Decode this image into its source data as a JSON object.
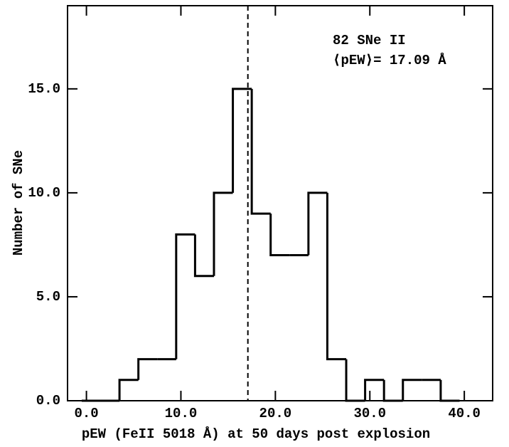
{
  "chart_data": {
    "type": "histogram",
    "xlabel": "pEW (FeII 5018 Å) at 50 days post explosion",
    "ylabel": "Number of SNe",
    "annotations": [
      "82 SNe II",
      "⟨pEW⟩= 17.09 Å"
    ],
    "mean_line": 17.09,
    "bins": [
      -0.5,
      1.5,
      3.5,
      5.5,
      7.5,
      9.5,
      11.5,
      13.5,
      15.5,
      17.5,
      19.5,
      21.5,
      23.5,
      25.5,
      27.5,
      29.5,
      31.5,
      33.5,
      35.5,
      37.5,
      39.5
    ],
    "values": [
      0,
      0,
      1,
      2,
      2,
      8,
      6,
      10,
      15,
      9,
      7,
      7,
      10,
      2,
      0,
      1,
      0,
      1,
      1,
      0
    ],
    "color": "#000000",
    "xlim": [
      -2,
      43
    ],
    "ylim": [
      0,
      19
    ],
    "xticks": [
      {
        "value": 0,
        "label": "0.0"
      },
      {
        "value": 10,
        "label": "10.0"
      },
      {
        "value": 20,
        "label": "20.0"
      },
      {
        "value": 30,
        "label": "30.0"
      },
      {
        "value": 40,
        "label": "40.0"
      }
    ],
    "yticks": [
      {
        "value": 0,
        "label": "0.0"
      },
      {
        "value": 5,
        "label": "5.0"
      },
      {
        "value": 10,
        "label": "10.0"
      },
      {
        "value": 15,
        "label": "15.0"
      }
    ]
  }
}
